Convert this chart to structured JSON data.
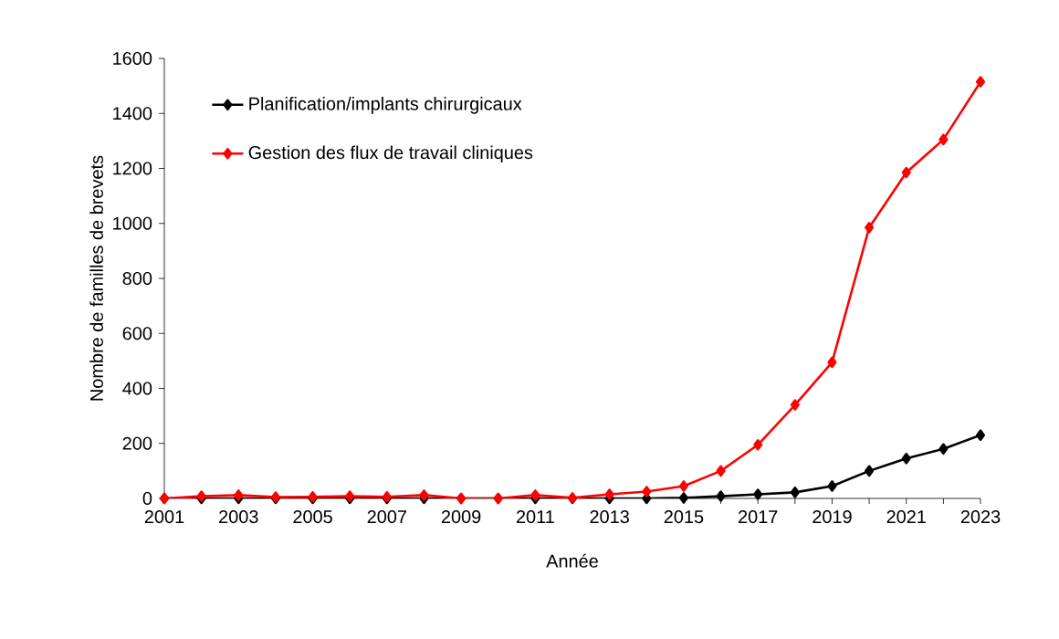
{
  "chart_data": {
    "type": "line",
    "xlabel": "Année",
    "ylabel": "Nombre de familles de brevets",
    "x": [
      2001,
      2002,
      2003,
      2004,
      2005,
      2006,
      2007,
      2008,
      2009,
      2010,
      2011,
      2012,
      2013,
      2014,
      2015,
      2016,
      2017,
      2018,
      2019,
      2020,
      2021,
      2022,
      2023
    ],
    "series": [
      {
        "name": "Planification/implants chirurgicaux",
        "color": "#000000",
        "values": [
          0,
          0,
          0,
          0,
          0,
          0,
          0,
          0,
          0,
          0,
          0,
          0,
          0,
          0,
          2,
          8,
          15,
          22,
          45,
          100,
          145,
          180,
          230
        ]
      },
      {
        "name": "Gestion des flux de travail cliniques",
        "color": "#ff0000",
        "values": [
          0,
          8,
          12,
          5,
          6,
          8,
          6,
          12,
          0,
          0,
          12,
          2,
          15,
          25,
          45,
          100,
          195,
          340,
          495,
          985,
          1185,
          1305,
          1515
        ]
      }
    ],
    "xlim": [
      2001,
      2023
    ],
    "xticks": [
      2001,
      {
        "value": 2002,
        "label": null
      },
      2003,
      {
        "value": 2004,
        "label": null
      },
      2005,
      {
        "value": 2006,
        "label": null
      },
      2007,
      {
        "value": 2008,
        "label": null
      },
      2009,
      {
        "value": 2010,
        "label": null
      },
      2011,
      {
        "value": 2012,
        "label": null
      },
      2013,
      {
        "value": 2014,
        "label": null
      },
      2015,
      {
        "value": 2016,
        "label": null
      },
      2017,
      {
        "value": 2018,
        "label": null
      },
      2019,
      {
        "value": 2020,
        "label": null
      },
      2021,
      {
        "value": 2022,
        "label": null
      },
      2023
    ],
    "ylim": [
      0,
      1600
    ],
    "yticks": [
      0,
      200,
      400,
      600,
      800,
      1000,
      1200,
      1400,
      1600
    ],
    "grid": false,
    "legend": "top left",
    "marker": "diamond",
    "line_style": "solid"
  }
}
